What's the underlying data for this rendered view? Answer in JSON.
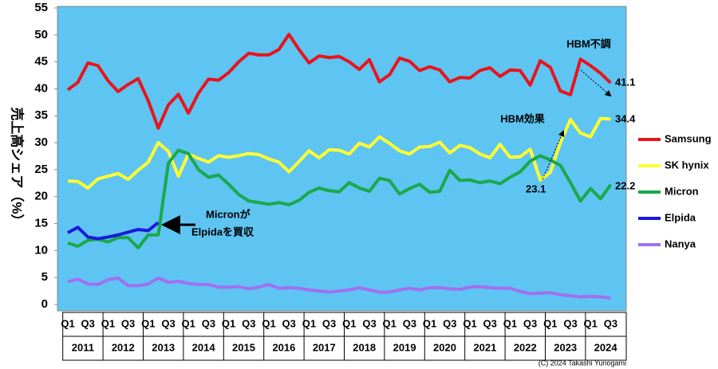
{
  "chart_data": {
    "type": "line",
    "y_label": "売上高シェア（%）",
    "categories": [
      "Q1",
      null,
      "Q3",
      null,
      "Q1",
      null,
      "Q3",
      null,
      "Q1",
      null,
      "Q3",
      null,
      "Q1",
      null,
      "Q3",
      null,
      "Q1",
      null,
      "Q3",
      null,
      "Q1",
      null,
      "Q3",
      null,
      "Q1",
      null,
      "Q3",
      null,
      "Q1",
      null,
      "Q3",
      null,
      "Q1",
      null,
      "Q3",
      null,
      "Q1",
      null,
      "Q3",
      null,
      "Q1",
      null,
      "Q3",
      null,
      "Q1",
      null,
      "Q3",
      null,
      "Q1",
      null,
      "Q3",
      null,
      "Q1",
      null,
      "Q3"
    ],
    "years": [
      "2011",
      "2012",
      "2013",
      "2014",
      "2015",
      "2016",
      "2017",
      "2018",
      "2019",
      "2020",
      "2021",
      "2022",
      "2023",
      "2024"
    ],
    "ylim": [
      0,
      55
    ],
    "yticks": [
      0,
      5,
      10,
      15,
      20,
      25,
      30,
      35,
      40,
      45,
      50,
      55
    ],
    "grid": false,
    "series": [
      {
        "name": "Samsung",
        "color": "#e8141c",
        "values": [
          39.8,
          41.2,
          44.8,
          44.3,
          41.5,
          39.5,
          40.8,
          41.9,
          37.8,
          32.7,
          37.0,
          39.0,
          35.5,
          39.2,
          41.8,
          41.6,
          43.0,
          45.0,
          46.6,
          46.3,
          46.3,
          47.3,
          50.1,
          47.3,
          44.8,
          46.1,
          45.8,
          46.0,
          45.0,
          43.6,
          45.4,
          41.3,
          42.6,
          45.7,
          45.1,
          43.4,
          44.1,
          43.5,
          41.3,
          42.1,
          42.0,
          43.4,
          43.9,
          42.3,
          43.5,
          43.4,
          40.7,
          45.2,
          44.0,
          39.6,
          38.9,
          45.5,
          44.3,
          42.9,
          41.1
        ]
      },
      {
        "name": "SK hynix",
        "color": "#ffff33",
        "values": [
          22.9,
          22.8,
          21.6,
          23.3,
          23.8,
          24.3,
          23.2,
          24.9,
          26.4,
          30.0,
          28.4,
          23.8,
          27.9,
          27.1,
          26.4,
          27.6,
          27.3,
          27.6,
          28.0,
          27.8,
          27.0,
          26.4,
          24.6,
          26.5,
          28.5,
          27.2,
          28.7,
          28.6,
          27.9,
          29.9,
          29.2,
          31.1,
          29.9,
          28.5,
          27.9,
          29.2,
          29.3,
          30.1,
          28.1,
          29.5,
          29.1,
          27.9,
          27.2,
          29.7,
          27.3,
          27.4,
          28.8,
          23.1,
          24.5,
          30.0,
          34.3,
          31.8,
          31.1,
          34.5,
          34.4
        ]
      },
      {
        "name": "Micron",
        "color": "#1aa84a",
        "values": [
          11.4,
          10.8,
          11.9,
          12.1,
          11.6,
          12.4,
          12.4,
          10.5,
          12.9,
          12.9,
          26.2,
          28.6,
          28.0,
          25.0,
          23.6,
          24.0,
          22.3,
          20.4,
          19.2,
          18.9,
          18.6,
          18.9,
          18.5,
          19.3,
          20.8,
          21.6,
          21.1,
          20.9,
          22.6,
          21.6,
          21.0,
          23.4,
          23.0,
          20.5,
          21.5,
          22.3,
          20.8,
          21.0,
          24.9,
          23.0,
          23.1,
          22.6,
          22.9,
          22.4,
          23.6,
          24.6,
          26.6,
          27.6,
          26.8,
          25.8,
          22.6,
          19.2,
          21.5,
          19.6,
          22.2
        ]
      },
      {
        "name": "Elpida",
        "color": "#1a1adb",
        "values": [
          13.3,
          14.3,
          12.5,
          12.2,
          12.5,
          12.9,
          13.4,
          13.9,
          13.7,
          15.2,
          null,
          null,
          null,
          null,
          null,
          null,
          null,
          null,
          null,
          null,
          null,
          null,
          null,
          null,
          null,
          null,
          null,
          null,
          null,
          null,
          null,
          null,
          null,
          null,
          null,
          null,
          null,
          null,
          null,
          null,
          null,
          null,
          null,
          null,
          null,
          null,
          null,
          null,
          null,
          null,
          null,
          null,
          null,
          null,
          null
        ]
      },
      {
        "name": "Nanya",
        "color": "#a070f0",
        "values": [
          4.2,
          4.7,
          3.8,
          3.7,
          4.6,
          4.9,
          3.5,
          3.5,
          3.8,
          4.9,
          4.1,
          4.3,
          3.9,
          3.7,
          3.7,
          3.2,
          3.2,
          3.3,
          2.9,
          3.2,
          3.7,
          3.0,
          3.1,
          3.0,
          2.7,
          2.5,
          2.3,
          2.5,
          2.7,
          3.1,
          2.7,
          2.3,
          2.3,
          2.7,
          3.0,
          2.7,
          3.1,
          3.1,
          2.9,
          2.8,
          3.2,
          3.3,
          3.1,
          3.0,
          3.0,
          2.4,
          2.0,
          2.1,
          2.2,
          1.8,
          1.6,
          1.4,
          1.5,
          1.4,
          1.2
        ]
      }
    ],
    "annotations": [
      {
        "text": "HBM不調"
      },
      {
        "text": "HBM効果"
      },
      {
        "text": "Micronが"
      },
      {
        "text": "Elpidaを買収"
      },
      {
        "text": "41.1"
      },
      {
        "text": "34.4"
      },
      {
        "text": "22.2"
      },
      {
        "text": "23.1"
      }
    ],
    "copyright": "(C) 2024 Takashi Yunogami"
  }
}
